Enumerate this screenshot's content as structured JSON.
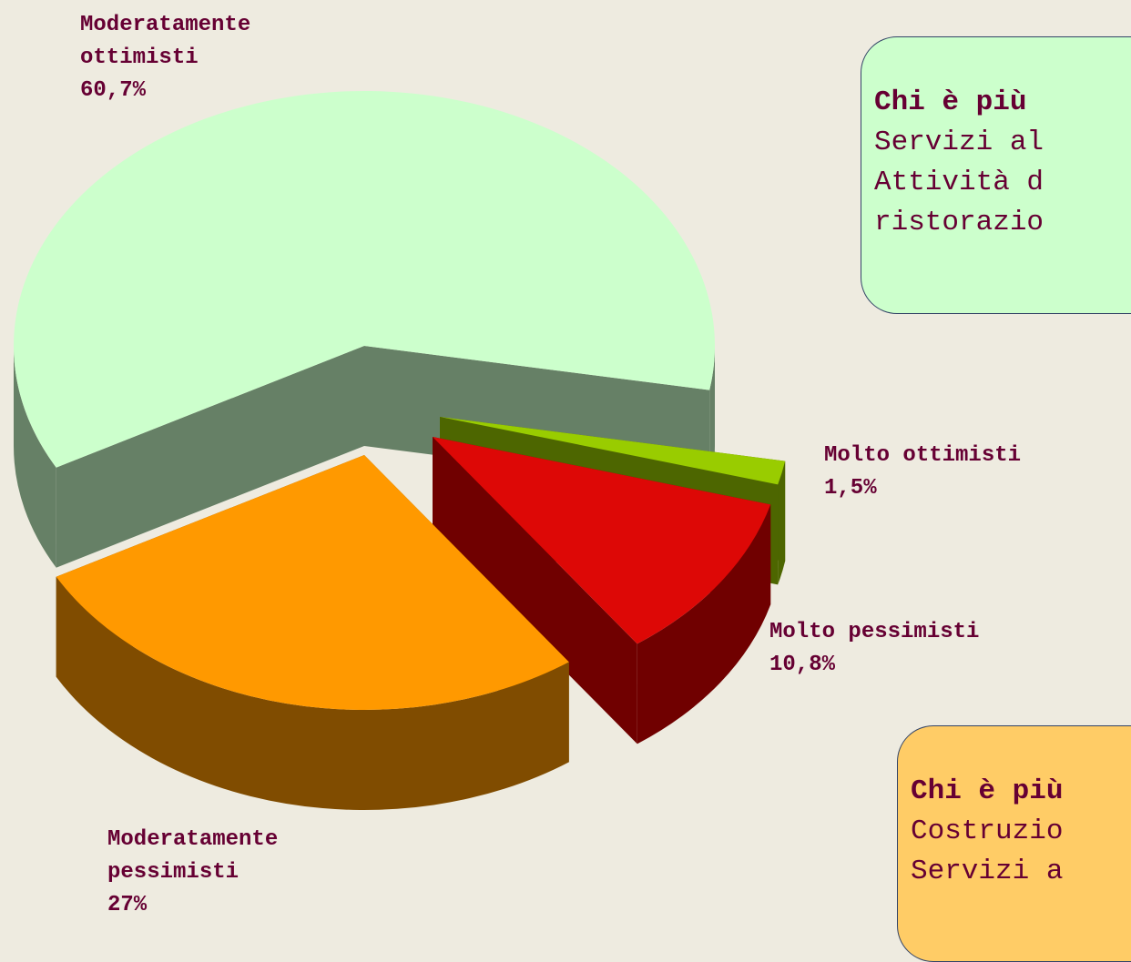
{
  "chart_data": {
    "type": "pie3d",
    "categories": [
      "Molto ottimisti",
      "Molto pessimisti",
      "Moderatamente pessimisti",
      "Moderatamente ottimisti"
    ],
    "values": [
      1.5,
      10.8,
      27,
      60.7
    ],
    "value_labels": [
      "1,5%",
      "10,8%",
      "27%",
      "60,7%"
    ],
    "colors": [
      "#99cc00",
      "#dd0806",
      "#ff9900",
      "#ccffcc"
    ],
    "side_colors": [
      "#4d6600",
      "#700000",
      "#804c00",
      "#668066"
    ],
    "annotations": [
      {
        "title": "Chi è più",
        "lines": [
          "Servizi al",
          "Attività d",
          "ristorazio"
        ]
      },
      {
        "title": "Chi è più",
        "lines": [
          "Costruzio",
          "Servizi a"
        ]
      }
    ]
  }
}
